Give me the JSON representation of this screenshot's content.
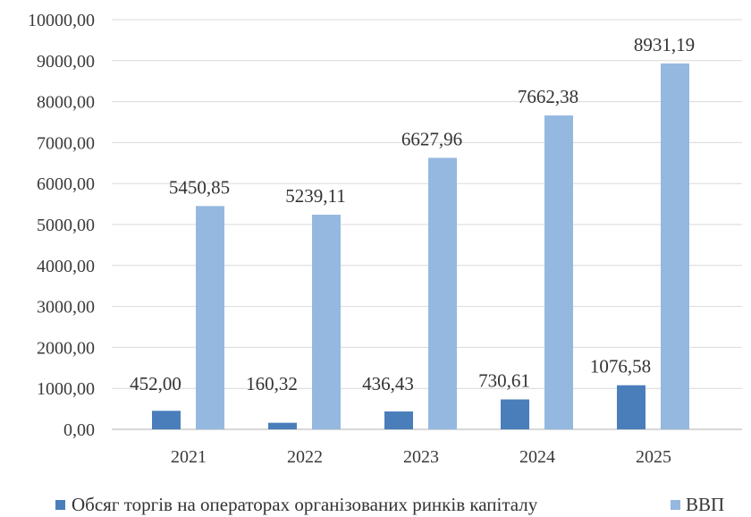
{
  "chart_data": {
    "type": "bar",
    "categories": [
      "2021",
      "2022",
      "2023",
      "2024",
      "2025"
    ],
    "series": [
      {
        "name": "Обсяг торгів на операторах організованих ринків капіталу",
        "values": [
          452.0,
          160.32,
          436.43,
          730.61,
          1076.58
        ],
        "labels": [
          "452,00",
          "160,32",
          "436,43",
          "730,61",
          "1076,58"
        ],
        "color": "#4a7ebb"
      },
      {
        "name": "ВВП",
        "values": [
          5450.85,
          5239.11,
          6627.96,
          7662.38,
          8931.19
        ],
        "labels": [
          "5450,85",
          "5239,11",
          "6627,96",
          "7662,38",
          "8931,19"
        ],
        "color": "#95b8e0"
      }
    ],
    "ylim": [
      0,
      10000
    ],
    "yticks": [
      "0,00",
      "1000,00",
      "2000,00",
      "3000,00",
      "4000,00",
      "5000,00",
      "6000,00",
      "7000,00",
      "8000,00",
      "9000,00",
      "10000,00"
    ],
    "grid": true,
    "legend_position": "bottom"
  }
}
